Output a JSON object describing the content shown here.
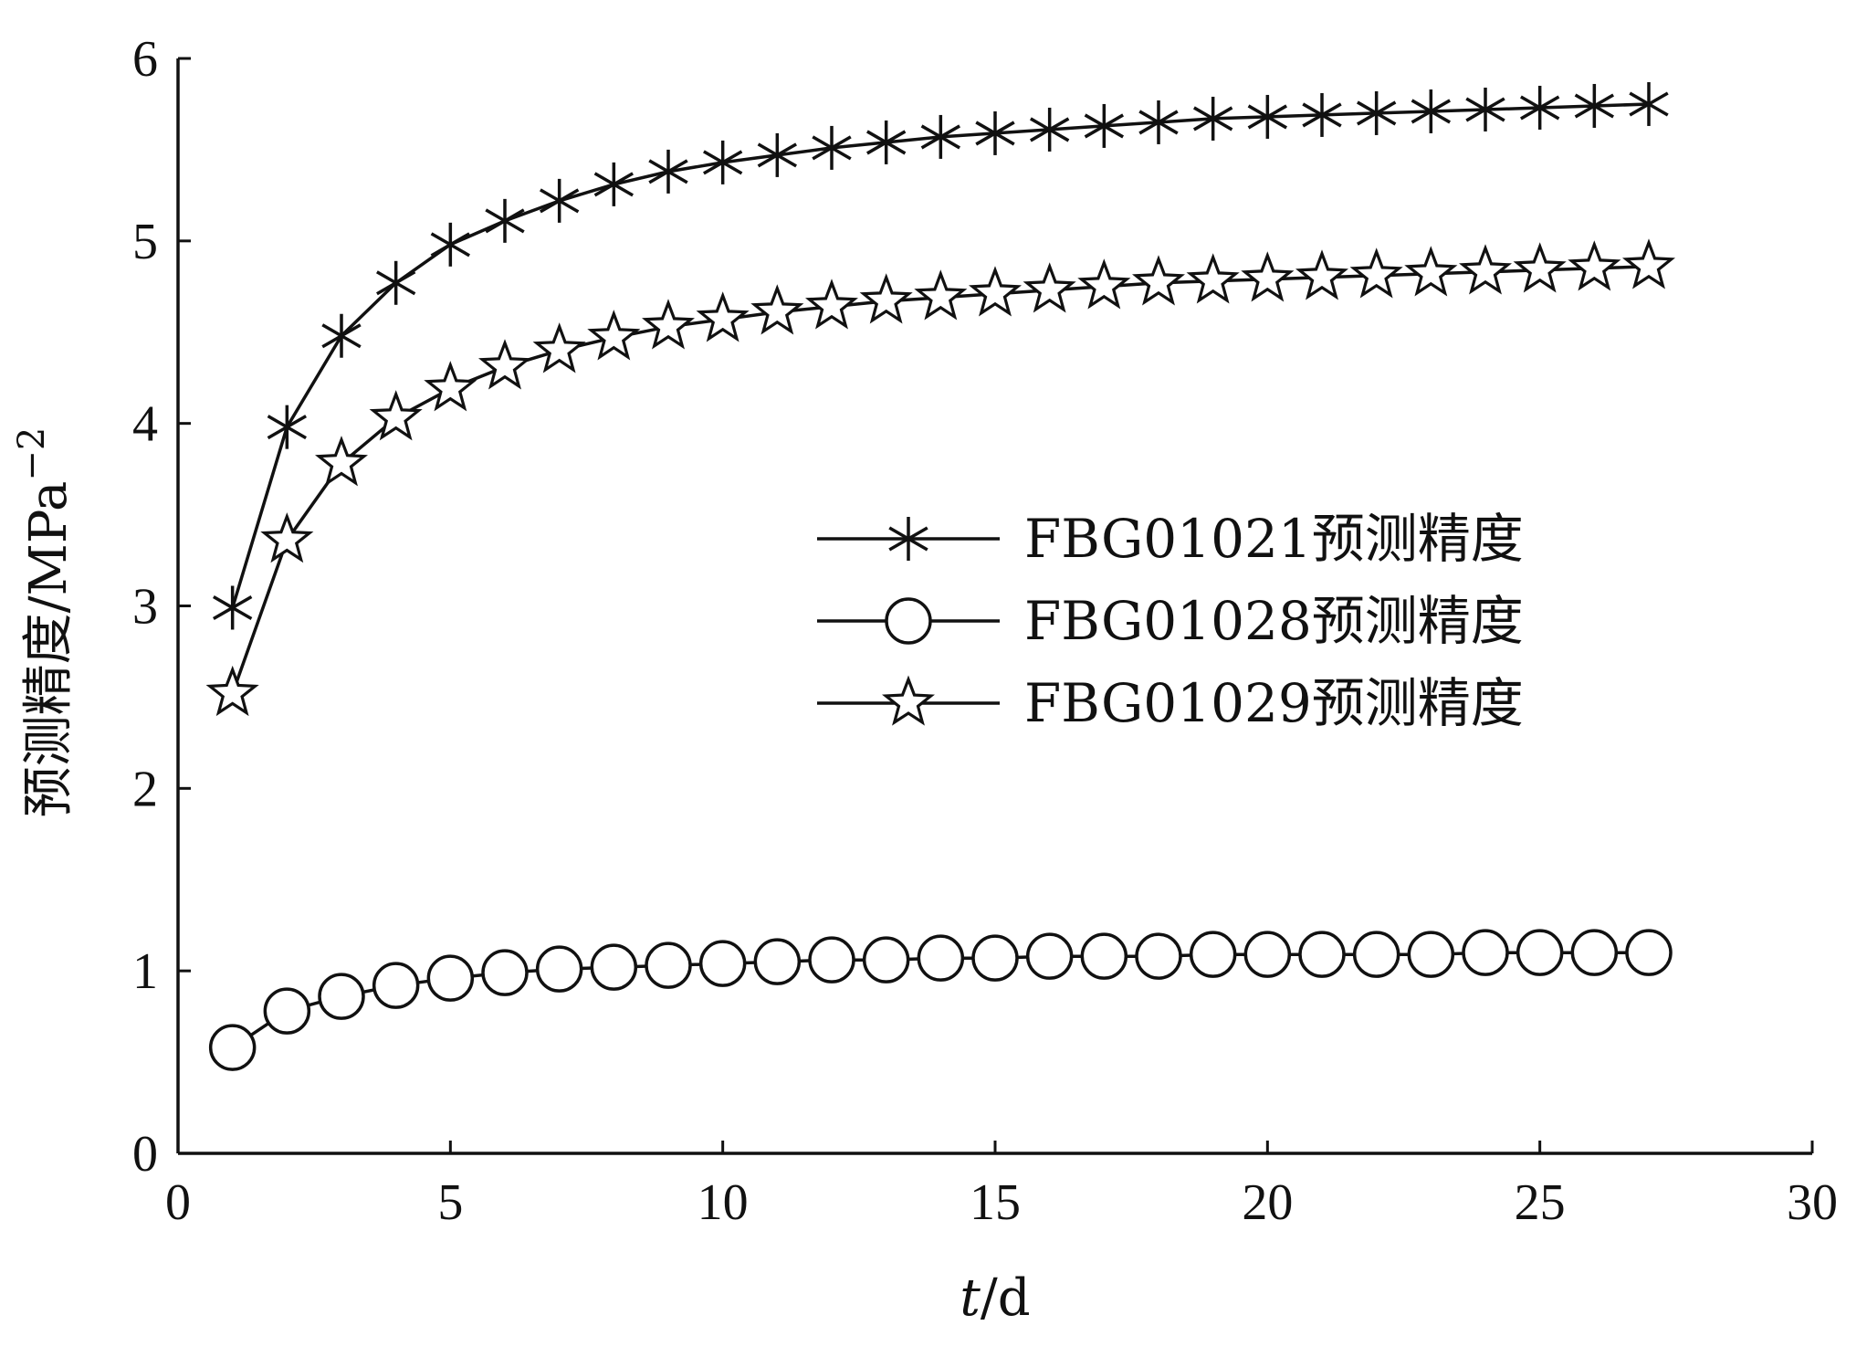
{
  "chart_data": {
    "type": "line",
    "title": "",
    "xlabel": {
      "var": "t",
      "unit": "/d"
    },
    "ylabel": {
      "text": "预测精度/MPa",
      "sup": "−2"
    },
    "xlim": [
      0,
      30
    ],
    "ylim": [
      0,
      6
    ],
    "xticks": [
      0,
      5,
      10,
      15,
      20,
      25,
      30
    ],
    "yticks": [
      0,
      1,
      2,
      3,
      4,
      5,
      6
    ],
    "grid": false,
    "legend_position": "center-right",
    "x": [
      1,
      2,
      3,
      4,
      5,
      6,
      7,
      8,
      9,
      10,
      11,
      12,
      13,
      14,
      15,
      16,
      17,
      18,
      19,
      20,
      21,
      22,
      23,
      24,
      25,
      26,
      27
    ],
    "series": [
      {
        "name": "FBG01021预测精度",
        "marker": "asterisk",
        "values": [
          2.99,
          3.98,
          4.48,
          4.77,
          4.98,
          5.11,
          5.22,
          5.31,
          5.38,
          5.43,
          5.47,
          5.51,
          5.54,
          5.57,
          5.59,
          5.61,
          5.63,
          5.65,
          5.67,
          5.68,
          5.69,
          5.7,
          5.71,
          5.72,
          5.73,
          5.74,
          5.75
        ]
      },
      {
        "name": "FBG01028预测精度",
        "marker": "circle",
        "values": [
          0.58,
          0.78,
          0.86,
          0.92,
          0.96,
          0.99,
          1.01,
          1.02,
          1.03,
          1.04,
          1.05,
          1.06,
          1.06,
          1.07,
          1.07,
          1.08,
          1.08,
          1.08,
          1.09,
          1.09,
          1.09,
          1.09,
          1.09,
          1.1,
          1.1,
          1.1,
          1.1
        ]
      },
      {
        "name": "FBG01029预测精度",
        "marker": "star",
        "values": [
          2.52,
          3.36,
          3.78,
          4.03,
          4.19,
          4.31,
          4.4,
          4.47,
          4.53,
          4.57,
          4.61,
          4.64,
          4.67,
          4.69,
          4.71,
          4.73,
          4.75,
          4.77,
          4.78,
          4.79,
          4.8,
          4.81,
          4.82,
          4.83,
          4.84,
          4.85,
          4.86
        ]
      }
    ],
    "colors": {
      "line": "#111111",
      "marker_fill": "#ffffff",
      "axis": "#111111"
    }
  }
}
